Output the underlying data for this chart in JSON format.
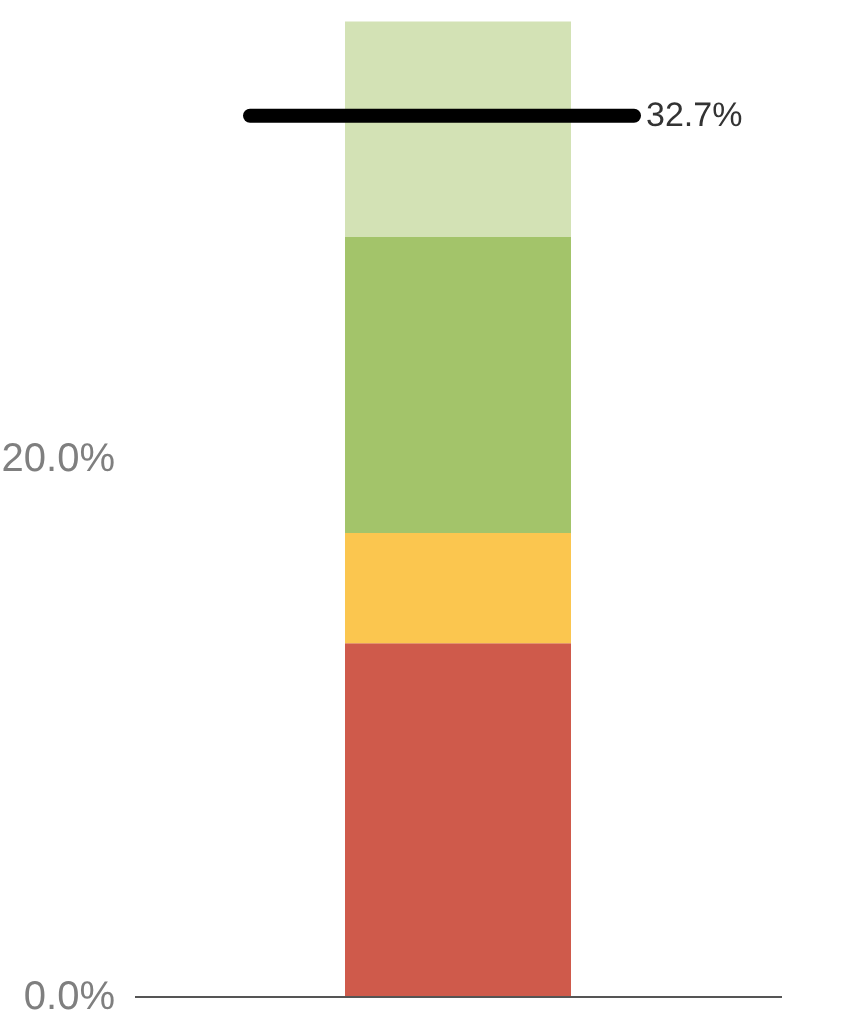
{
  "chart_data": {
    "type": "bar",
    "stacked": true,
    "categories": [
      null
    ],
    "series": [
      {
        "color": "#cf5a4b",
        "values": [
          13.1
        ]
      },
      {
        "color": "#fbc64f",
        "values": [
          4.1
        ]
      },
      {
        "color": "#a3c46a",
        "values": [
          11.0
        ]
      },
      {
        "color": "#d3e2b5",
        "values": [
          8.0
        ]
      }
    ],
    "ylim": [
      0,
      37.0
    ],
    "yticks": [
      {
        "value": 0,
        "label": "0.0%"
      },
      {
        "value": 20,
        "label": "20.0%"
      }
    ],
    "tick_labels": "y",
    "grid": false,
    "legend": false,
    "ref_lines": [
      {
        "axis": "y",
        "value": 32.7,
        "label": "32.7%",
        "color": "#000000"
      }
    ]
  }
}
